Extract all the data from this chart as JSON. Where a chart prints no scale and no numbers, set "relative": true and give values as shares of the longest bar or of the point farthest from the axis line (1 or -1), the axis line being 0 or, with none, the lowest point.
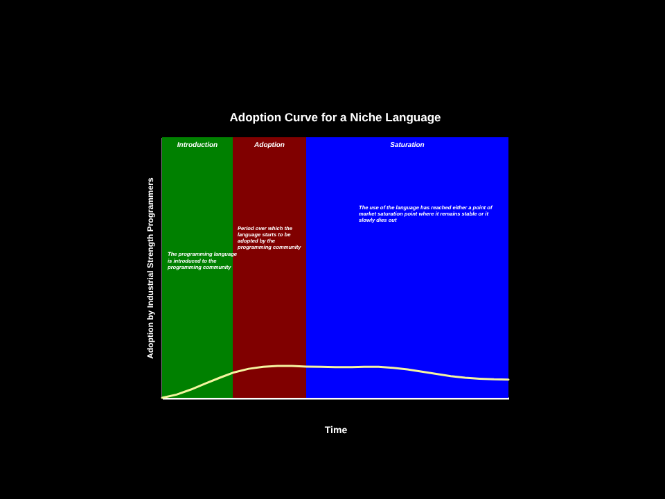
{
  "chart_data": {
    "type": "line",
    "title": "Adoption Curve for a Niche Language",
    "xlabel": "Time",
    "ylabel": "Adoption by Industrial Strength Programmers",
    "relative": true,
    "categories": [
      null,
      null,
      null,
      null,
      null,
      null,
      null,
      null,
      null,
      null,
      null,
      null,
      null,
      null,
      null,
      null,
      null,
      null,
      null,
      null,
      null,
      null,
      null,
      null,
      null
    ],
    "series": [
      {
        "color": "#f5f5a0",
        "values": [
          0,
          0.1,
          0.26,
          0.45,
          0.63,
          0.8,
          0.91,
          0.97,
          1,
          1,
          0.98,
          0.97,
          0.96,
          0.96,
          0.97,
          0.97,
          0.94,
          0.89,
          0.82,
          0.75,
          0.68,
          0.63,
          0.6,
          0.58,
          0.57
        ]
      }
    ],
    "annotations": [
      "Introduction",
      "Adoption",
      "Saturation",
      "The programming language is introduced to the programming community",
      "Period over which the language starts to be adopted by the programming community",
      "The use of the language has reached either a point of market saturation point where it remains stable or it slowly dies out"
    ]
  }
}
